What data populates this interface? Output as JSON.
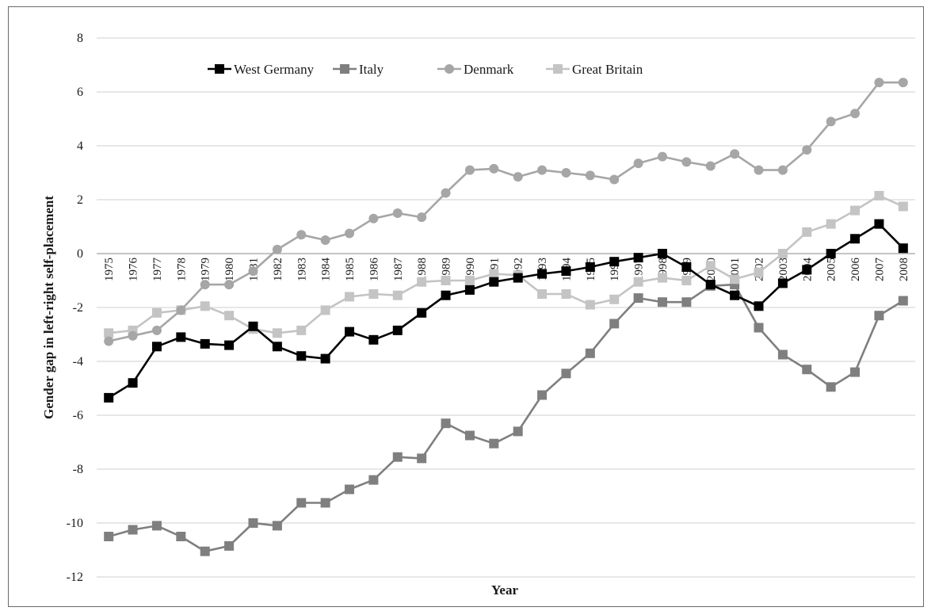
{
  "chart_data": {
    "type": "line",
    "title": "",
    "xlabel": "Year",
    "ylabel": "Gender gap in left-right self-placement",
    "ylim": [
      -12,
      8
    ],
    "yticks": [
      8,
      6,
      4,
      2,
      0,
      -2,
      -4,
      -6,
      -8,
      -10,
      -12
    ],
    "grid": true,
    "legend_position": "top",
    "categories": [
      "1975",
      "1976",
      "1977",
      "1978",
      "1979",
      "1980",
      "1981",
      "1982",
      "1983",
      "1984",
      "1985",
      "1986",
      "1987",
      "1988",
      "1989",
      "1990",
      "1991",
      "1992",
      "1993",
      "1994",
      "1995",
      "1996",
      "1997",
      "1998",
      "1999",
      "2000",
      "2001",
      "2002",
      "2003",
      "2004",
      "2005",
      "2006",
      "2007",
      "2008"
    ],
    "series": [
      {
        "name": "West Germany",
        "marker": "square",
        "color": "#000000",
        "values": [
          -5.35,
          -4.8,
          -3.45,
          -3.1,
          -3.35,
          -3.4,
          -2.7,
          -3.45,
          -3.8,
          -3.9,
          -2.9,
          -3.2,
          -2.85,
          -2.2,
          -1.55,
          -1.35,
          -1.05,
          -0.9,
          -0.75,
          -0.65,
          -0.5,
          -0.3,
          -0.15,
          0.0,
          -0.5,
          -1.15,
          -1.55,
          -1.95,
          -1.1,
          -0.6,
          0.0,
          0.55,
          1.1,
          0.2
        ]
      },
      {
        "name": "Italy",
        "marker": "square",
        "color": "#7f7f7f",
        "values": [
          -10.5,
          -10.25,
          -10.1,
          -10.5,
          -11.05,
          -10.85,
          -10.0,
          -10.1,
          -9.25,
          -9.25,
          -8.75,
          -8.4,
          -7.55,
          -7.6,
          -6.3,
          -6.75,
          -7.05,
          -6.6,
          -5.25,
          -4.45,
          -3.7,
          -2.6,
          -1.65,
          -1.8,
          -1.8,
          -1.2,
          -1.15,
          -2.75,
          -3.75,
          -4.3,
          -4.95,
          -4.4,
          -2.3,
          -1.75
        ]
      },
      {
        "name": "Denmark",
        "marker": "circle",
        "color": "#a6a6a6",
        "values": [
          -3.25,
          -3.05,
          -2.85,
          -2.1,
          -1.15,
          -1.15,
          -0.65,
          0.15,
          0.7,
          0.5,
          0.75,
          1.3,
          1.5,
          1.35,
          2.25,
          3.1,
          3.15,
          2.85,
          3.1,
          3.0,
          2.9,
          2.75,
          3.35,
          3.6,
          3.4,
          3.25,
          3.7,
          3.1,
          3.1,
          3.85,
          4.9,
          5.2,
          6.35,
          6.35
        ]
      },
      {
        "name": "Great Britain",
        "marker": "square",
        "color": "#c4c4c4",
        "values": [
          -2.95,
          -2.85,
          -2.2,
          -2.1,
          -1.95,
          -2.3,
          -2.8,
          -2.95,
          -2.85,
          -2.1,
          -1.6,
          -1.5,
          -1.55,
          -1.05,
          -1.0,
          -1.0,
          -0.75,
          -0.8,
          -1.5,
          -1.5,
          -1.9,
          -1.7,
          -1.05,
          -0.9,
          -1.0,
          -0.45,
          -0.95,
          -0.7,
          0.0,
          0.8,
          1.1,
          1.6,
          2.15,
          1.75
        ]
      }
    ]
  }
}
